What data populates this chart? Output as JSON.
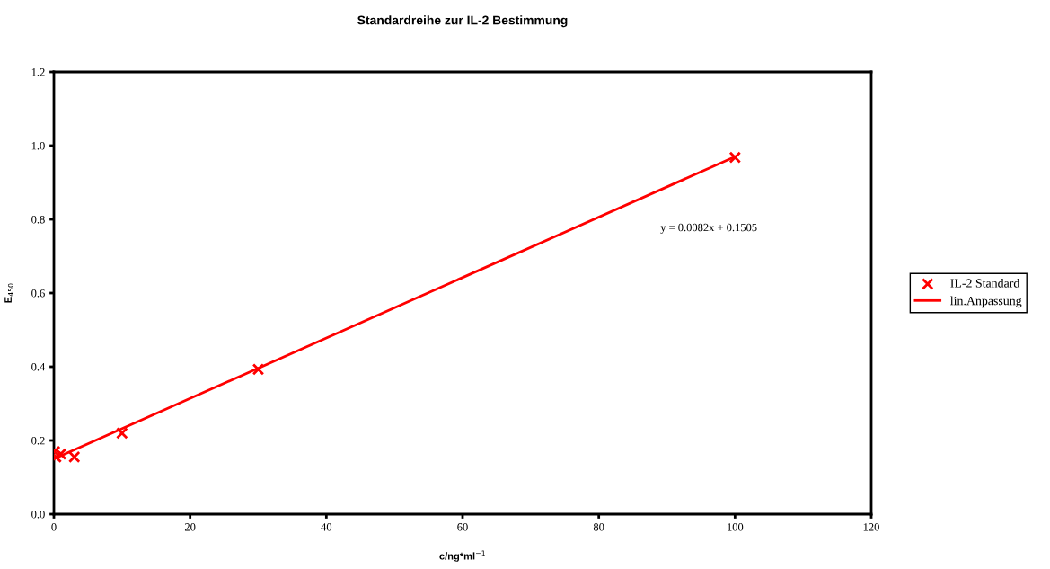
{
  "chart_data": {
    "type": "scatter",
    "title": "Standardreihe zur IL-2 Bestimmung",
    "xlabel": "c/ng*ml$^{−1}$",
    "ylabel": "E$_{450}$",
    "series": [
      {
        "name": "IL-2 Standard",
        "color": "#ff0000",
        "marker": "cross",
        "x": [
          0.1,
          0.3,
          1,
          3,
          10,
          30,
          100
        ],
        "values": [
          0.17,
          0.155,
          0.163,
          0.155,
          0.22,
          0.393,
          0.968
        ]
      },
      {
        "name": "lin.Anpassung",
        "type": "line",
        "color": "#ff0000",
        "line_style": "solid",
        "x": [
          0,
          100
        ],
        "values": [
          0.15,
          0.97
        ]
      }
    ],
    "annotations": [
      "y = 0.0082x + 0.1505"
    ],
    "xlim": [
      0,
      120
    ],
    "xticks": [
      0,
      20,
      40,
      60,
      80,
      100,
      120
    ],
    "ylim": [
      0,
      1.2
    ],
    "yticks": [
      {
        "value": 0,
        "label": "0.0"
      },
      {
        "value": 0.2,
        "label": "0.2"
      },
      {
        "value": 0.4,
        "label": "0.4"
      },
      {
        "value": 0.6,
        "label": "0.6"
      },
      {
        "value": 0.8,
        "label": "0.8"
      },
      {
        "value": 1.0,
        "label": "1.0"
      },
      {
        "value": 1.2,
        "label": "1.2"
      }
    ],
    "grid": false,
    "legend": "right"
  }
}
